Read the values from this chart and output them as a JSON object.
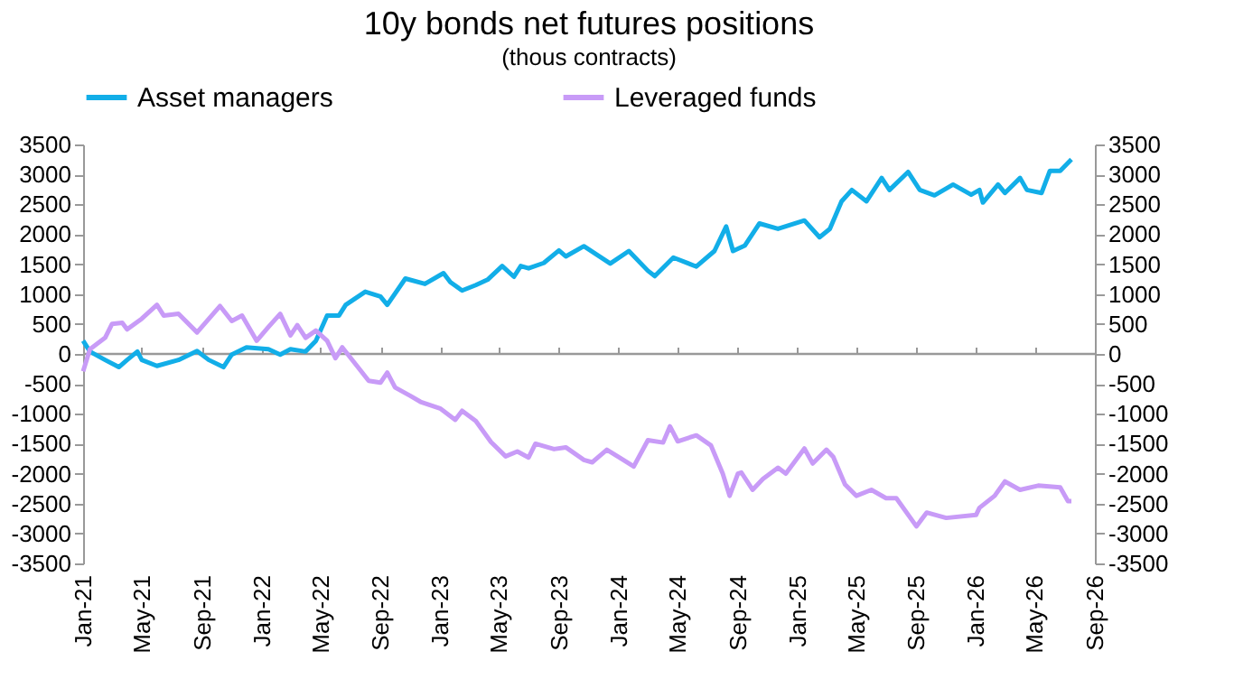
{
  "chart_data": {
    "type": "line",
    "title": "10y bonds net futures positions",
    "subtitle": "(thous contracts)",
    "xlim": [
      "2021-01-01",
      "2026-09-01"
    ],
    "xticks": [
      {
        "value": "2021-01-01",
        "label": "Jan-21"
      },
      {
        "value": "2021-05-01",
        "label": "May-21"
      },
      {
        "value": "2021-09-01",
        "label": "Sep-21"
      },
      {
        "value": "2022-01-01",
        "label": "Jan-22"
      },
      {
        "value": "2022-05-01",
        "label": "May-22"
      },
      {
        "value": "2022-09-01",
        "label": "Sep-22"
      },
      {
        "value": "2023-01-01",
        "label": "Jan-23"
      },
      {
        "value": "2023-05-01",
        "label": "May-23"
      },
      {
        "value": "2023-09-01",
        "label": "Sep-23"
      },
      {
        "value": "2024-01-01",
        "label": "Jan-24"
      },
      {
        "value": "2024-05-01",
        "label": "May-24"
      },
      {
        "value": "2024-09-01",
        "label": "Sep-24"
      },
      {
        "value": "2025-01-01",
        "label": "Jan-25"
      },
      {
        "value": "2025-05-01",
        "label": "May-25"
      },
      {
        "value": "2025-09-01",
        "label": "Sep-25"
      },
      {
        "value": "2026-01-01",
        "label": "Jan-26"
      },
      {
        "value": "2026-05-01",
        "label": "May-26"
      },
      {
        "value": "2026-09-01",
        "label": "Sep-26"
      }
    ],
    "ylim": [
      -3500,
      3500
    ],
    "yticks": [
      -3500,
      -3000,
      -2500,
      -2000,
      -1500,
      -1000,
      -500,
      0,
      500,
      1000,
      1500,
      2000,
      2500,
      3000,
      3500
    ],
    "y2lim": [
      -3500,
      3500
    ],
    "y2ticks": [
      -3500,
      -3000,
      -2500,
      -2000,
      -1500,
      -1000,
      -500,
      0,
      500,
      1000,
      1500,
      2000,
      2500,
      3000,
      3500
    ],
    "ref_lines": [
      {
        "axis": "y",
        "value": 0,
        "color": "#999999"
      }
    ],
    "grid": false,
    "legend": "top",
    "line_style": "solid",
    "series": [
      {
        "name": "Asset managers",
        "color": "#12aee8",
        "x": [
          "2021-01-01",
          "2021-01-15",
          "2021-02-15",
          "2021-03-15",
          "2021-04-01",
          "2021-04-22",
          "2021-05-01",
          "2021-06-01",
          "2021-07-15",
          "2021-08-22",
          "2021-09-15",
          "2021-10-15",
          "2021-11-01",
          "2021-12-01",
          "2022-01-15",
          "2022-02-08",
          "2022-03-01",
          "2022-04-01",
          "2022-04-22",
          "2022-05-15",
          "2022-06-08",
          "2022-06-22",
          "2022-08-01",
          "2022-09-01",
          "2022-09-15",
          "2022-10-22",
          "2022-12-01",
          "2023-01-08",
          "2023-01-22",
          "2023-02-15",
          "2023-03-15",
          "2023-04-08",
          "2023-05-08",
          "2023-06-01",
          "2023-06-15",
          "2023-07-01",
          "2023-08-01",
          "2023-09-01",
          "2023-09-15",
          "2023-10-22",
          "2023-12-15",
          "2024-01-22",
          "2024-03-01",
          "2024-03-15",
          "2024-04-22",
          "2024-06-08",
          "2024-07-15",
          "2024-08-08",
          "2024-08-22",
          "2024-09-15",
          "2024-10-15",
          "2024-11-22",
          "2025-01-15",
          "2025-02-15",
          "2025-03-08",
          "2025-04-01",
          "2025-04-22",
          "2025-05-22",
          "2025-06-22",
          "2025-07-08",
          "2025-08-15",
          "2025-09-08",
          "2025-10-08",
          "2025-11-15",
          "2025-12-22",
          "2026-01-08",
          "2026-01-15",
          "2026-02-15",
          "2026-03-01",
          "2026-04-01",
          "2026-04-15",
          "2026-05-15",
          "2026-06-01",
          "2026-06-22",
          "2026-07-15"
        ],
        "values": [
          220,
          40,
          -100,
          -220,
          -100,
          40,
          -100,
          -200,
          -100,
          50,
          -100,
          -220,
          -10,
          110,
          80,
          -10,
          80,
          40,
          220,
          640,
          640,
          820,
          1040,
          960,
          820,
          1260,
          1170,
          1350,
          1200,
          1060,
          1150,
          1240,
          1470,
          1290,
          1470,
          1430,
          1520,
          1730,
          1630,
          1800,
          1510,
          1720,
          1390,
          1300,
          1610,
          1460,
          1720,
          2130,
          1720,
          1810,
          2180,
          2090,
          2230,
          1950,
          2090,
          2550,
          2740,
          2550,
          2940,
          2740,
          3040,
          2740,
          2650,
          2830,
          2660,
          2740,
          2530,
          2830,
          2690,
          2940,
          2740,
          2690,
          3060,
          3060,
          3250
        ]
      },
      {
        "name": "Leveraged funds",
        "color": "#c89bf7",
        "x": [
          "2021-01-01",
          "2021-01-15",
          "2021-02-15",
          "2021-03-01",
          "2021-03-22",
          "2021-04-01",
          "2021-05-01",
          "2021-06-01",
          "2021-06-15",
          "2021-07-15",
          "2021-08-22",
          "2021-10-08",
          "2021-11-01",
          "2021-11-22",
          "2021-12-22",
          "2022-01-15",
          "2022-02-08",
          "2022-03-01",
          "2022-03-15",
          "2022-04-01",
          "2022-04-22",
          "2022-05-15",
          "2022-06-01",
          "2022-06-15",
          "2022-07-15",
          "2022-08-08",
          "2022-09-01",
          "2022-09-15",
          "2022-10-01",
          "2022-11-01",
          "2022-11-22",
          "2023-01-01",
          "2023-02-01",
          "2023-02-15",
          "2023-03-15",
          "2023-04-15",
          "2023-05-15",
          "2023-06-08",
          "2023-07-01",
          "2023-07-15",
          "2023-08-22",
          "2023-09-15",
          "2023-10-22",
          "2023-11-08",
          "2023-12-08",
          "2024-01-01",
          "2024-02-01",
          "2024-03-01",
          "2024-04-01",
          "2024-04-15",
          "2024-05-01",
          "2024-06-08",
          "2024-07-08",
          "2024-08-01",
          "2024-08-15",
          "2024-09-01",
          "2024-09-08",
          "2024-10-01",
          "2024-10-22",
          "2024-11-22",
          "2024-12-08",
          "2025-01-15",
          "2025-02-01",
          "2025-03-01",
          "2025-03-15",
          "2025-04-08",
          "2025-05-01",
          "2025-06-01",
          "2025-07-01",
          "2025-07-22",
          "2025-09-01",
          "2025-09-22",
          "2025-11-01",
          "2026-01-01",
          "2026-01-08",
          "2026-02-08",
          "2026-03-01",
          "2026-04-01",
          "2026-05-08",
          "2026-06-22",
          "2026-07-08",
          "2026-07-15"
        ],
        "values": [
          -290,
          80,
          270,
          500,
          520,
          410,
          590,
          820,
          640,
          670,
          360,
          800,
          550,
          640,
          220,
          450,
          670,
          310,
          480,
          270,
          390,
          220,
          -70,
          110,
          -200,
          -450,
          -480,
          -310,
          -560,
          -700,
          -800,
          -910,
          -1100,
          -950,
          -1120,
          -1470,
          -1710,
          -1630,
          -1730,
          -1500,
          -1590,
          -1560,
          -1770,
          -1810,
          -1600,
          -1720,
          -1880,
          -1440,
          -1480,
          -1210,
          -1460,
          -1360,
          -1530,
          -2000,
          -2370,
          -2000,
          -1980,
          -2270,
          -2090,
          -1900,
          -2000,
          -1580,
          -1830,
          -1600,
          -1720,
          -2180,
          -2370,
          -2270,
          -2410,
          -2410,
          -2880,
          -2650,
          -2740,
          -2690,
          -2570,
          -2370,
          -2130,
          -2270,
          -2200,
          -2230,
          -2460,
          -2460
        ]
      }
    ]
  }
}
